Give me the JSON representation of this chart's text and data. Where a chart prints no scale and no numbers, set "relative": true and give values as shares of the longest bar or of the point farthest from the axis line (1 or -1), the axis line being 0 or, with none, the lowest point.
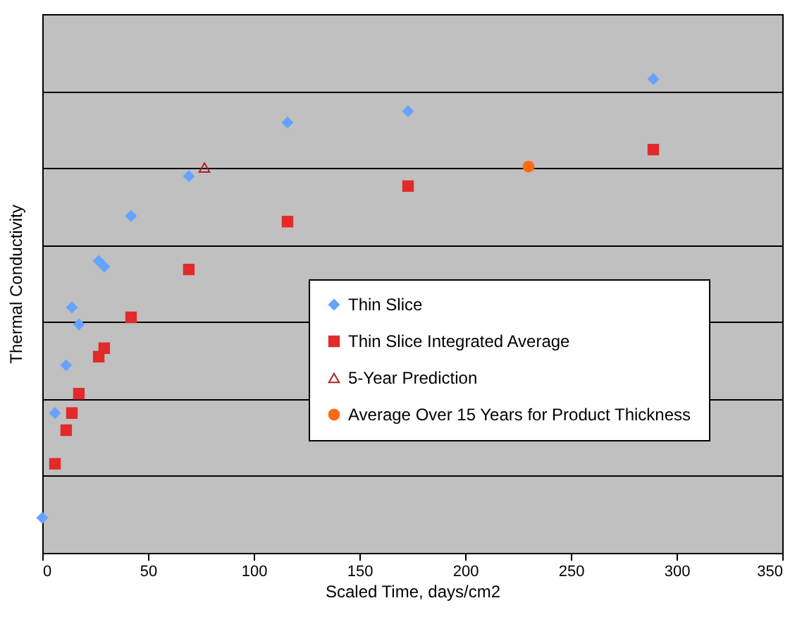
{
  "chart_data": {
    "type": "scatter",
    "relative": true,
    "xlabel": "Scaled Time, days/cm2",
    "ylabel": "Thermal Conductivity",
    "xlim": [
      0,
      350
    ],
    "xticks": [
      0,
      50,
      100,
      150,
      200,
      250,
      300,
      350
    ],
    "tick_labels": "x",
    "grid": "y",
    "legend": "bottom",
    "series": [
      {
        "name": "Thin Slice",
        "color": "#66a3ff",
        "marker": "diamond",
        "x": [
          0,
          6,
          11.3,
          14,
          17.3,
          26.7,
          29.3,
          42,
          69.3,
          116,
          173,
          289
        ],
        "values": [
          0.074,
          0.295,
          0.396,
          0.518,
          0.482,
          0.616,
          0.604,
          0.711,
          0.795,
          0.908,
          0.932,
          1.0
        ]
      },
      {
        "name": "Thin Slice Integrated Average",
        "color": "#e32a2a",
        "marker": "square",
        "x": [
          6,
          11.3,
          14,
          17.3,
          26.7,
          29.3,
          42,
          69.3,
          116,
          173,
          289
        ],
        "values": [
          0.188,
          0.259,
          0.295,
          0.336,
          0.414,
          0.432,
          0.497,
          0.598,
          0.699,
          0.774,
          0.851
        ]
      },
      {
        "name": "5-Year Prediction",
        "color": "#b22222",
        "marker": "triangle",
        "x": [
          76.7
        ],
        "values": [
          0.813
        ]
      },
      {
        "name": "Average Over 15 Years for Product Thickness",
        "color": "#ff6a13",
        "marker": "circle",
        "x": [
          230
        ],
        "values": [
          0.815
        ]
      }
    ]
  }
}
